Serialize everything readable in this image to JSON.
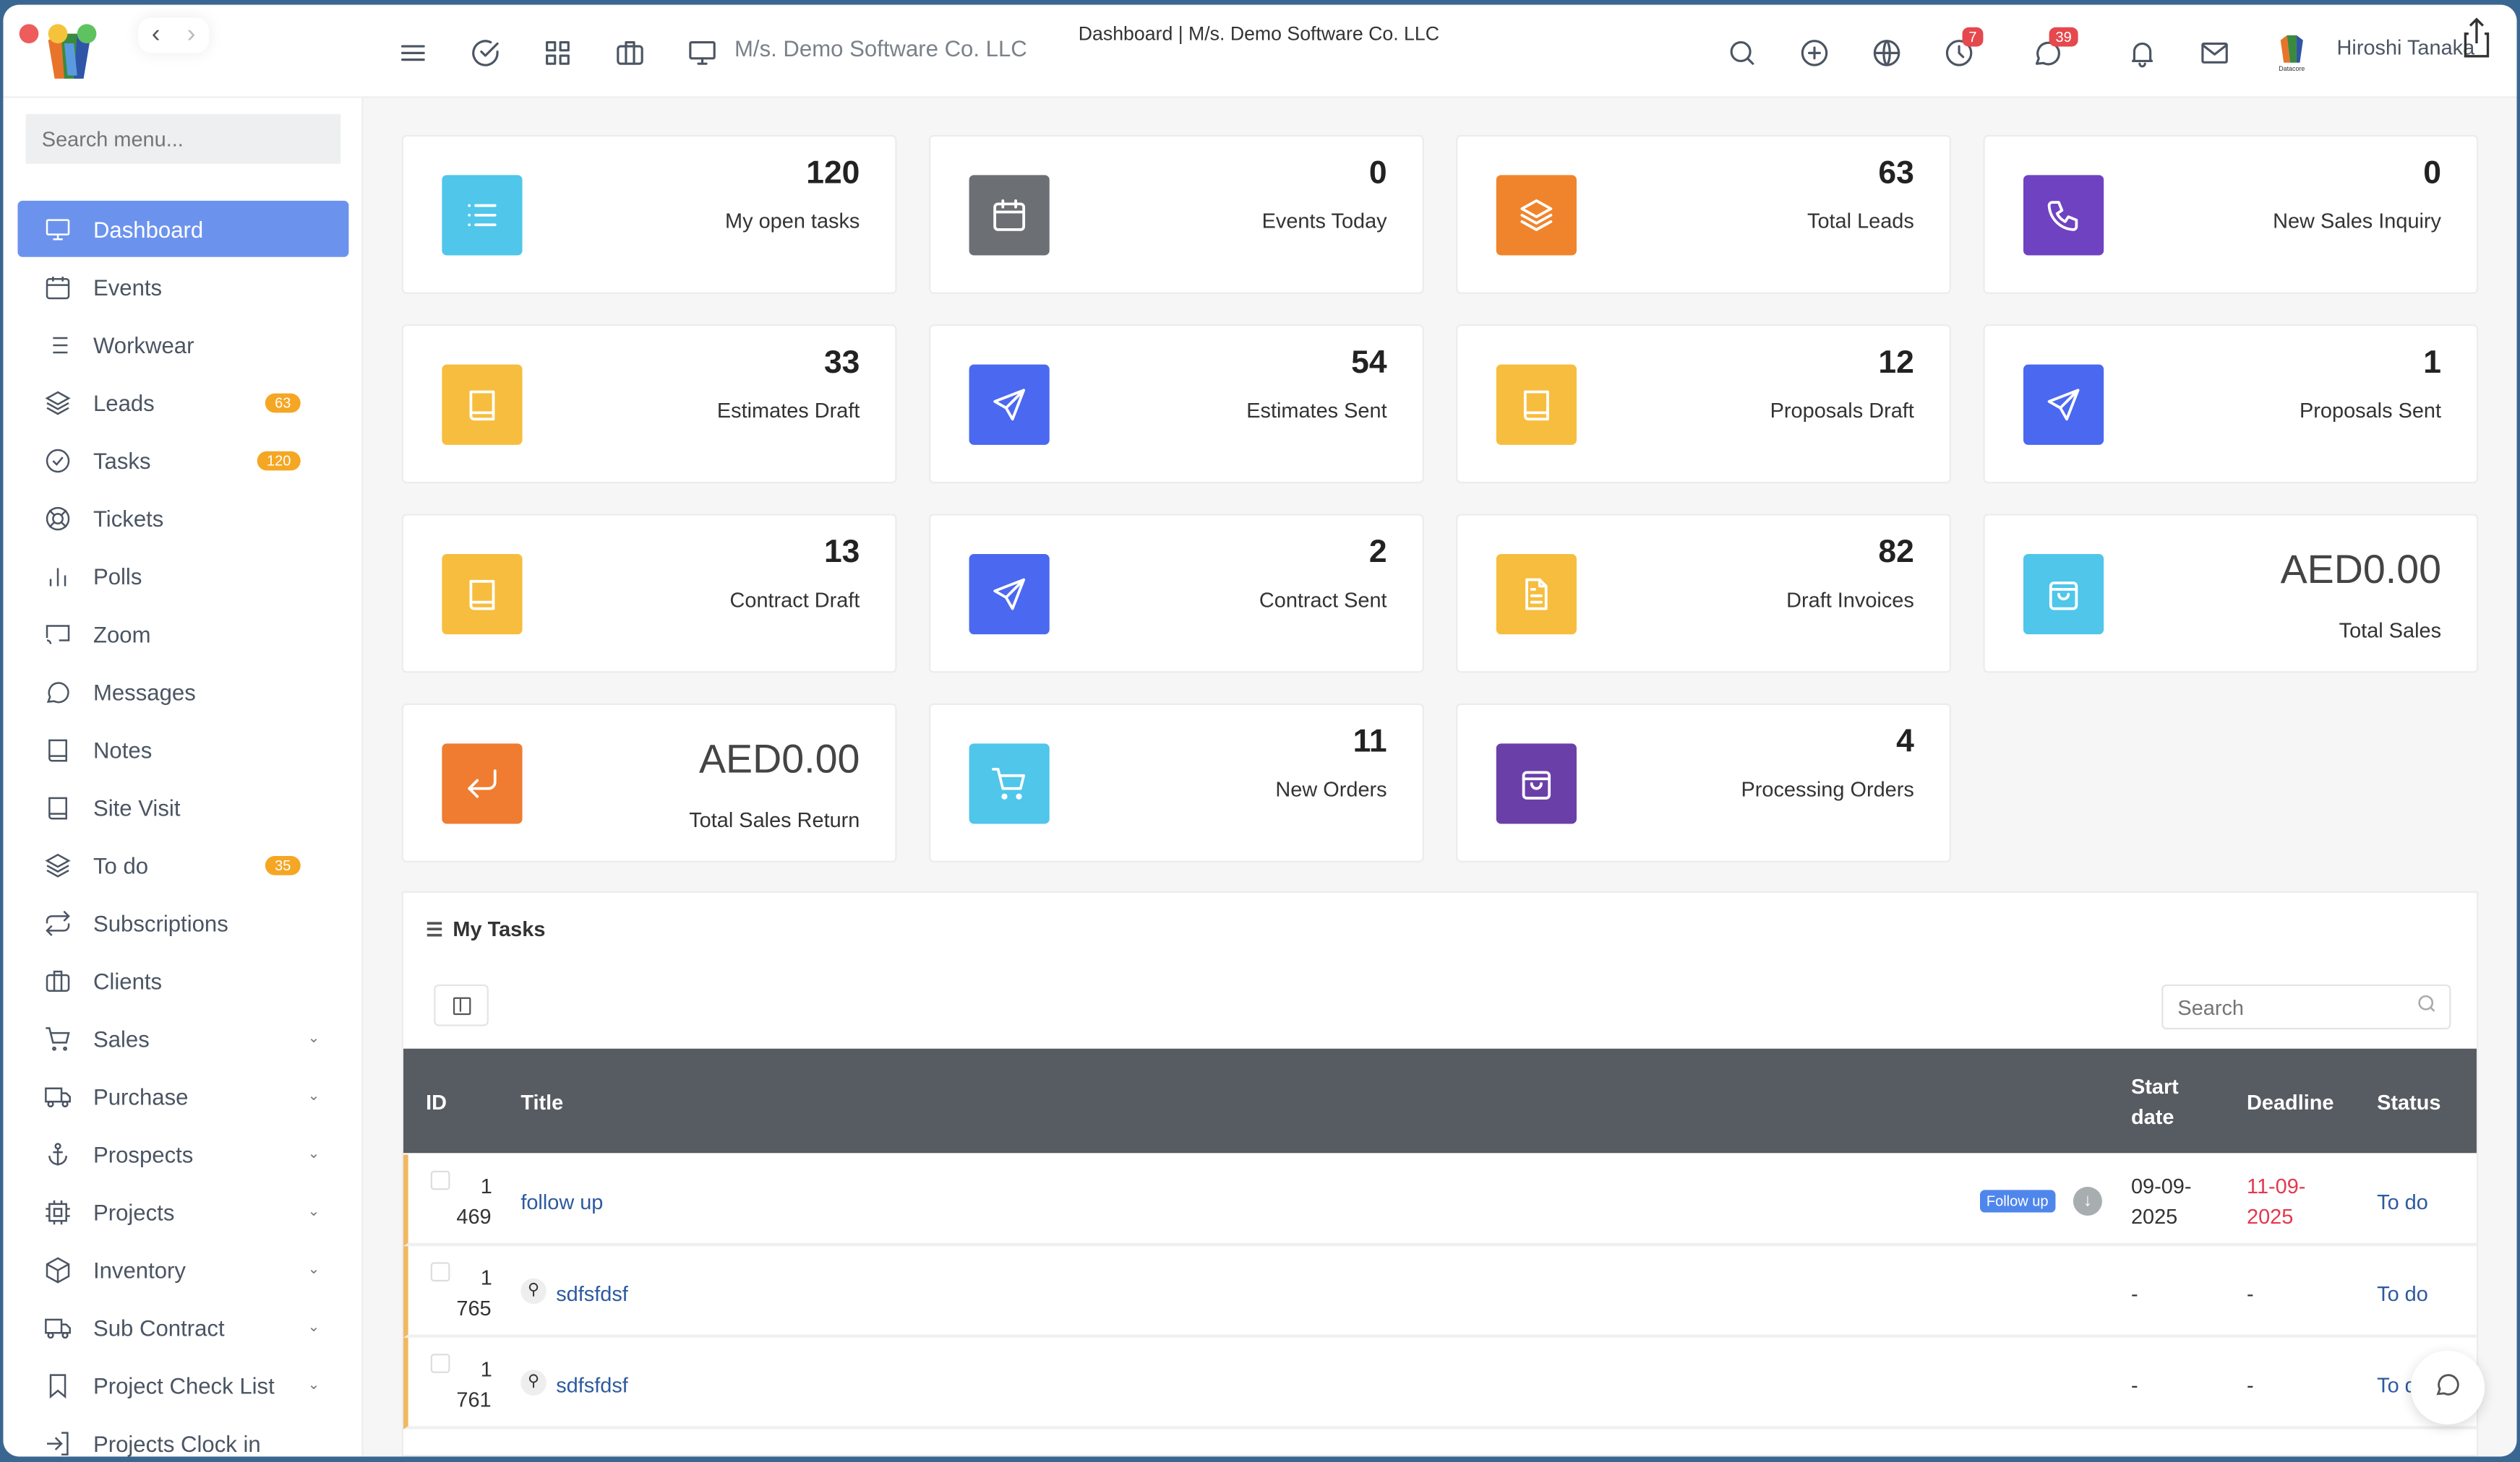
{
  "header": {
    "company": "M/s. Demo Software Co. LLC",
    "page_title": "Dashboard | M/s. Demo Software Co. LLC",
    "clock_badge": "7",
    "chat_badge": "39",
    "user": "Hiroshi Tanaka",
    "org_logo_text": "Datacore"
  },
  "sidebar": {
    "search_placeholder": "Search menu...",
    "items": [
      {
        "label": "Dashboard",
        "icon": "monitor-icon",
        "active": true
      },
      {
        "label": "Events",
        "icon": "calendar-icon"
      },
      {
        "label": "Workwear",
        "icon": "list-icon"
      },
      {
        "label": "Leads",
        "icon": "layers-icon",
        "badge": "63"
      },
      {
        "label": "Tasks",
        "icon": "check-circle-icon",
        "badge": "120"
      },
      {
        "label": "Tickets",
        "icon": "lifebuoy-icon"
      },
      {
        "label": "Polls",
        "icon": "bar-chart-icon"
      },
      {
        "label": "Zoom",
        "icon": "cast-icon"
      },
      {
        "label": "Messages",
        "icon": "message-icon"
      },
      {
        "label": "Notes",
        "icon": "book-icon"
      },
      {
        "label": "Site Visit",
        "icon": "book-icon"
      },
      {
        "label": "To do",
        "icon": "layers-icon",
        "badge": "35"
      },
      {
        "label": "Subscriptions",
        "icon": "repeat-icon"
      },
      {
        "label": "Clients",
        "icon": "briefcase-icon"
      },
      {
        "label": "Sales",
        "icon": "cart-icon",
        "expand": true
      },
      {
        "label": "Purchase",
        "icon": "truck-icon",
        "expand": true
      },
      {
        "label": "Prospects",
        "icon": "anchor-icon",
        "expand": true
      },
      {
        "label": "Projects",
        "icon": "cpu-icon",
        "expand": true
      },
      {
        "label": "Inventory",
        "icon": "box-icon",
        "expand": true
      },
      {
        "label": "Sub Contract",
        "icon": "truck-icon",
        "expand": true
      },
      {
        "label": "Project Check List",
        "icon": "bookmark-icon",
        "expand": true
      },
      {
        "label": "Projects Clock in",
        "icon": "log-in-icon"
      }
    ]
  },
  "cards": [
    {
      "value": "120",
      "label": "My open tasks",
      "icon": "list-icon",
      "color": "#4fc6ea"
    },
    {
      "value": "0",
      "label": "Events Today",
      "icon": "calendar-icon",
      "color": "#6c7075"
    },
    {
      "value": "63",
      "label": "Total Leads",
      "icon": "layers-icon",
      "color": "#f0842c"
    },
    {
      "value": "0",
      "label": "New Sales Inquiry",
      "icon": "phone-icon",
      "color": "#6f42c1"
    },
    {
      "value": "33",
      "label": "Estimates Draft",
      "icon": "book-icon",
      "color": "#f6bd3e"
    },
    {
      "value": "54",
      "label": "Estimates Sent",
      "icon": "send-icon",
      "color": "#4a68f0"
    },
    {
      "value": "12",
      "label": "Proposals Draft",
      "icon": "book-icon",
      "color": "#f6bd3e"
    },
    {
      "value": "1",
      "label": "Proposals Sent",
      "icon": "send-icon",
      "color": "#4a68f0"
    },
    {
      "value": "13",
      "label": "Contract Draft",
      "icon": "book-icon",
      "color": "#f6bd3e"
    },
    {
      "value": "2",
      "label": "Contract Sent",
      "icon": "send-icon",
      "color": "#4a68f0"
    },
    {
      "value": "82",
      "label": "Draft Invoices",
      "icon": "file-text-icon",
      "color": "#f6bd3e"
    },
    {
      "value": "AED0.00",
      "label": "Total Sales",
      "icon": "shopping-bag-icon",
      "color": "#4fc6ea",
      "money": true
    },
    {
      "value": "AED0.00",
      "label": "Total Sales Return",
      "icon": "corner-down-left-icon",
      "color": "#ef7c31",
      "money": true
    },
    {
      "value": "11",
      "label": "New Orders",
      "icon": "cart-icon",
      "color": "#4fc6ea"
    },
    {
      "value": "4",
      "label": "Processing Orders",
      "icon": "shopping-bag-icon",
      "color": "#6b3fa8"
    }
  ],
  "tasks": {
    "title": "My Tasks",
    "search_placeholder": "Search",
    "columns": {
      "id": "ID",
      "title": "Title",
      "start_line1": "Start",
      "start_line2": "date",
      "deadline": "Deadline",
      "status": "Status"
    },
    "rows": [
      {
        "id1": "1",
        "id2": "469",
        "title": "follow up",
        "label": "Follow up",
        "start1": "09-09-",
        "start2": "2025",
        "dead1": "11-09-",
        "dead2": "2025",
        "status": "To do"
      },
      {
        "id1": "1",
        "id2": "765",
        "title": "sdfsfdsf",
        "subtask": true,
        "start1": "-",
        "dead1": "-",
        "status": "To do"
      },
      {
        "id1": "1",
        "id2": "761",
        "title": "sdfsfdsf",
        "subtask": true,
        "start1": "-",
        "dead1": "-",
        "status": "To do"
      }
    ]
  }
}
